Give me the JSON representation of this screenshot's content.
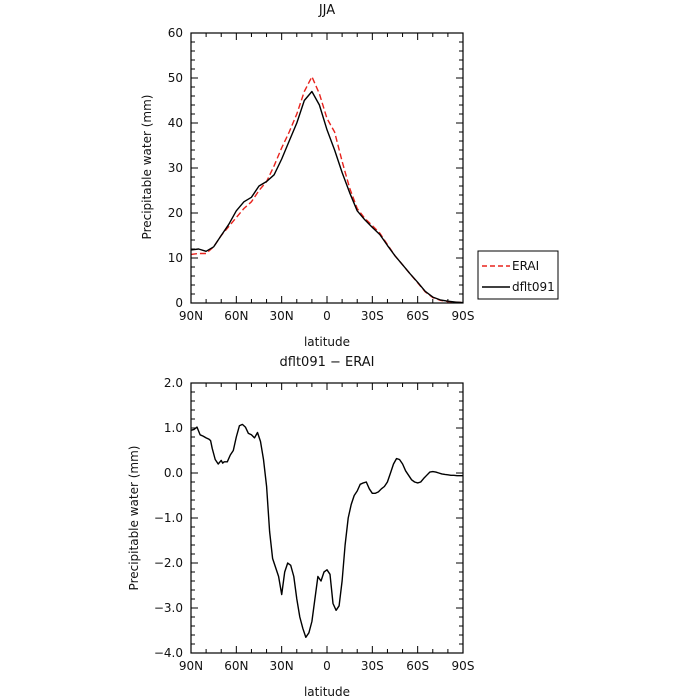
{
  "chart_data": [
    {
      "type": "line",
      "title": "JJA",
      "xlabel": "latitude",
      "ylabel": "Precipitable water  (mm)",
      "xlim": [
        90,
        -90
      ],
      "ylim": [
        0,
        60
      ],
      "x_ticks": [
        90,
        60,
        30,
        0,
        -30,
        -60,
        -90
      ],
      "x_tick_labels": [
        "90N",
        "60N",
        "30N",
        "0",
        "30S",
        "60S",
        "90S"
      ],
      "y_ticks": [
        0,
        10,
        20,
        30,
        40,
        50,
        60
      ],
      "y_tick_labels": [
        "0",
        "10",
        "20",
        "30",
        "40",
        "50",
        "60"
      ],
      "grid": false,
      "legend": "right",
      "series": [
        {
          "name": "ERAI",
          "color": "#e8231d",
          "style": "dashed",
          "x": [
            90,
            85,
            80,
            75,
            70,
            65,
            60,
            55,
            50,
            45,
            40,
            35,
            30,
            25,
            20,
            15,
            10,
            5,
            0,
            -5,
            -10,
            -15,
            -20,
            -25,
            -30,
            -35,
            -40,
            -45,
            -50,
            -55,
            -60,
            -65,
            -70,
            -75,
            -80,
            -85,
            -90
          ],
          "y": [
            10.8,
            11.0,
            11.0,
            12.5,
            15.0,
            17.0,
            19.0,
            21.0,
            22.5,
            25.0,
            27.0,
            30.5,
            34.5,
            38.0,
            42.0,
            47.0,
            50.3,
            46.5,
            41.0,
            38.0,
            31.5,
            25.5,
            21.0,
            18.8,
            17.2,
            15.5,
            13.0,
            10.5,
            8.5,
            6.5,
            4.5,
            2.5,
            1.2,
            0.6,
            0.3,
            0.2,
            0.1
          ]
        },
        {
          "name": "dflt091",
          "color": "#000000",
          "style": "solid",
          "x": [
            90,
            85,
            80,
            75,
            70,
            65,
            60,
            55,
            50,
            45,
            40,
            35,
            30,
            25,
            20,
            15,
            10,
            5,
            0,
            -5,
            -10,
            -15,
            -20,
            -25,
            -30,
            -35,
            -40,
            -45,
            -50,
            -55,
            -60,
            -65,
            -70,
            -75,
            -80,
            -85,
            -90
          ],
          "y": [
            11.8,
            12.0,
            11.5,
            12.5,
            15.0,
            17.5,
            20.5,
            22.5,
            23.5,
            26.0,
            27.0,
            28.5,
            32.0,
            36.0,
            40.0,
            45.0,
            47.0,
            44.0,
            38.5,
            34.0,
            29.0,
            24.5,
            20.5,
            18.5,
            16.8,
            15.2,
            12.8,
            10.5,
            8.5,
            6.5,
            4.6,
            2.6,
            1.3,
            0.7,
            0.4,
            0.2,
            0.1
          ]
        }
      ]
    },
    {
      "type": "line",
      "title": "dflt091  −  ERAI",
      "xlabel": "latitude",
      "ylabel": "Precipitable  water  (mm)",
      "xlim": [
        90,
        -90
      ],
      "ylim": [
        -4.0,
        2.0
      ],
      "x_ticks": [
        90,
        60,
        30,
        0,
        -30,
        -60,
        -90
      ],
      "x_tick_labels": [
        "90N",
        "60N",
        "30N",
        "0",
        "30S",
        "60S",
        "90S"
      ],
      "y_ticks": [
        -4,
        -3,
        -2,
        -1,
        0,
        1,
        2
      ],
      "y_tick_labels": [
        "−4.0",
        "−3.0",
        "−2.0",
        "−1.0",
        "0.0",
        "1.0",
        "2.0"
      ],
      "grid": false,
      "series": [
        {
          "color": "#000000",
          "style": "solid",
          "x": [
            90,
            88,
            86,
            84,
            82,
            80,
            78,
            77,
            76,
            74,
            72,
            70,
            69,
            68,
            66,
            64,
            62,
            60,
            58,
            56,
            54,
            52,
            50,
            48,
            46,
            44,
            42,
            40,
            38,
            36,
            34,
            32,
            30,
            28,
            26,
            24,
            22,
            20,
            18,
            16,
            14,
            12,
            10,
            8,
            6,
            4,
            2,
            0,
            -2,
            -4,
            -6,
            -8,
            -10,
            -12,
            -14,
            -16,
            -18,
            -20,
            -22,
            -24,
            -26,
            -28,
            -30,
            -32,
            -34,
            -36,
            -38,
            -40,
            -42,
            -44,
            -46,
            -48,
            -50,
            -52,
            -54,
            -56,
            -58,
            -60,
            -62,
            -64,
            -66,
            -68,
            -70,
            -72,
            -74,
            -76,
            -78,
            -80,
            -82,
            -84,
            -86,
            -88,
            -90
          ],
          "y": [
            0.95,
            0.97,
            1.02,
            0.85,
            0.82,
            0.78,
            0.75,
            0.72,
            0.55,
            0.3,
            0.2,
            0.28,
            0.22,
            0.25,
            0.25,
            0.4,
            0.5,
            0.8,
            1.05,
            1.08,
            1.02,
            0.88,
            0.85,
            0.78,
            0.9,
            0.7,
            0.3,
            -0.3,
            -1.3,
            -1.9,
            -2.1,
            -2.3,
            -2.7,
            -2.2,
            -2.0,
            -2.05,
            -2.3,
            -2.8,
            -3.2,
            -3.45,
            -3.65,
            -3.55,
            -3.3,
            -2.8,
            -2.3,
            -2.4,
            -2.2,
            -2.15,
            -2.25,
            -2.9,
            -3.05,
            -2.95,
            -2.4,
            -1.6,
            -1.0,
            -0.7,
            -0.5,
            -0.4,
            -0.25,
            -0.22,
            -0.2,
            -0.35,
            -0.45,
            -0.45,
            -0.42,
            -0.35,
            -0.3,
            -0.2,
            0.0,
            0.2,
            0.32,
            0.3,
            0.2,
            0.05,
            -0.05,
            -0.15,
            -0.2,
            -0.22,
            -0.2,
            -0.12,
            -0.05,
            0.02,
            0.03,
            0.02,
            0.0,
            -0.02,
            -0.03,
            -0.04,
            -0.05,
            -0.05,
            -0.06,
            -0.06,
            -0.06
          ]
        }
      ]
    }
  ]
}
